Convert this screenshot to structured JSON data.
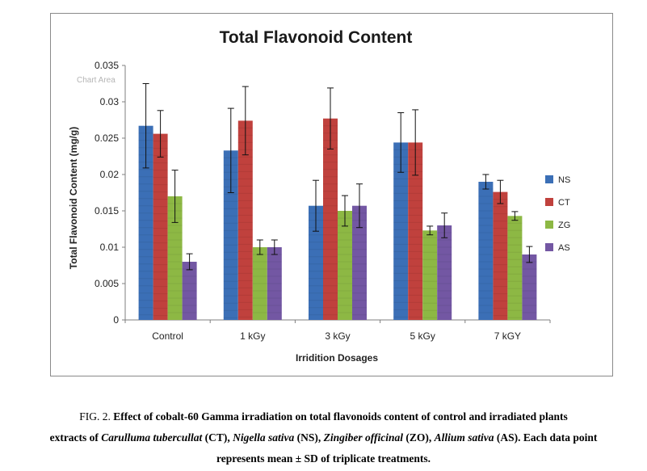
{
  "chart_data": {
    "type": "bar",
    "title": "Total Flavonoid Content",
    "xlabel": "Irridition Dosages",
    "ylabel": "Total Flavonoid  Content  (mg/g)",
    "ylim": [
      0,
      0.035
    ],
    "yticks": [
      "0",
      "0.005",
      "0.01",
      "0.015",
      "0.02",
      "0.025",
      "0.03",
      "0.035"
    ],
    "grid": false,
    "legend_position": "right",
    "categories": [
      "Control",
      "1 kGy",
      "3 kGy",
      "5 kGy",
      "7 kGY"
    ],
    "series": [
      {
        "name": "NS",
        "color": "#3b6fb6",
        "values": [
          0.0267,
          0.0233,
          0.0157,
          0.0244,
          0.019
        ],
        "errors": [
          0.0058,
          0.0058,
          0.0035,
          0.0041,
          0.001
        ]
      },
      {
        "name": "CT",
        "color": "#c0413d",
        "values": [
          0.0256,
          0.0274,
          0.0277,
          0.0244,
          0.0176
        ],
        "errors": [
          0.0032,
          0.0047,
          0.0042,
          0.0045,
          0.0016
        ]
      },
      {
        "name": "ZG",
        "color": "#8db844",
        "values": [
          0.017,
          0.01,
          0.015,
          0.0123,
          0.0143
        ],
        "errors": [
          0.0036,
          0.001,
          0.0021,
          0.0006,
          0.0006
        ]
      },
      {
        "name": "AS",
        "color": "#7357a3",
        "values": [
          0.008,
          0.01,
          0.0157,
          0.013,
          0.009
        ],
        "errors": [
          0.0011,
          0.001,
          0.003,
          0.0017,
          0.0011
        ]
      }
    ]
  },
  "chart_area_hint": "Chart Area",
  "caption": {
    "fig_label": "FIG. 2.",
    "line1_bold": "Effect of cobalt-60 Gamma irradiation on total flavonoids content of control and irradiated plants",
    "line2_a": "extracts of ",
    "line2_i1": "Carulluma tubercullat",
    "line2_b": " (CT), ",
    "line2_i2": "Nigella sativa",
    "line2_c": " (NS), ",
    "line2_i3": "Zingiber officinal",
    "line2_d": " (ZO), ",
    "line2_i4": "Allium sativa",
    "line2_e": " (AS). Each data point",
    "line3": "represents mean ± SD of triplicate treatments."
  }
}
